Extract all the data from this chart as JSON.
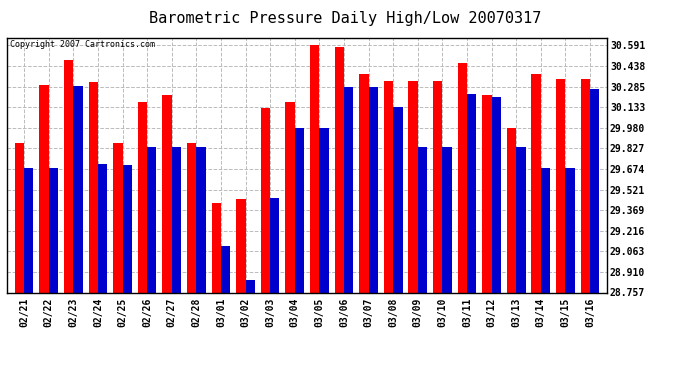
{
  "title": "Barometric Pressure Daily High/Low 20070317",
  "copyright": "Copyright 2007 Cartronics.com",
  "categories": [
    "02/21",
    "02/22",
    "02/23",
    "02/24",
    "02/25",
    "02/26",
    "02/27",
    "02/28",
    "03/01",
    "03/02",
    "03/03",
    "03/04",
    "03/05",
    "03/06",
    "03/07",
    "03/08",
    "03/09",
    "03/10",
    "03/11",
    "03/12",
    "03/13",
    "03/14",
    "03/15",
    "03/16"
  ],
  "highs": [
    29.87,
    30.3,
    30.48,
    30.32,
    29.87,
    30.17,
    30.22,
    29.87,
    29.42,
    29.45,
    30.13,
    30.17,
    30.591,
    30.58,
    30.38,
    30.33,
    30.33,
    30.33,
    30.46,
    30.22,
    29.98,
    30.38,
    30.34,
    30.34
  ],
  "lows": [
    29.68,
    29.68,
    30.29,
    29.71,
    29.7,
    29.84,
    29.84,
    29.84,
    29.1,
    28.85,
    29.46,
    29.98,
    29.98,
    30.28,
    30.285,
    30.133,
    29.84,
    29.84,
    30.23,
    30.21,
    29.84,
    29.68,
    29.68,
    30.27
  ],
  "high_color": "#ff0000",
  "low_color": "#0000cc",
  "bg_color": "#ffffff",
  "grid_color": "#bbbbbb",
  "title_fontsize": 11,
  "copyright_fontsize": 6,
  "tick_fontsize": 7,
  "yticks": [
    28.757,
    28.91,
    29.063,
    29.216,
    29.369,
    29.521,
    29.674,
    29.827,
    29.98,
    30.133,
    30.285,
    30.438,
    30.591
  ],
  "ymin": 28.757,
  "ymax": 30.65,
  "bar_width": 0.38
}
